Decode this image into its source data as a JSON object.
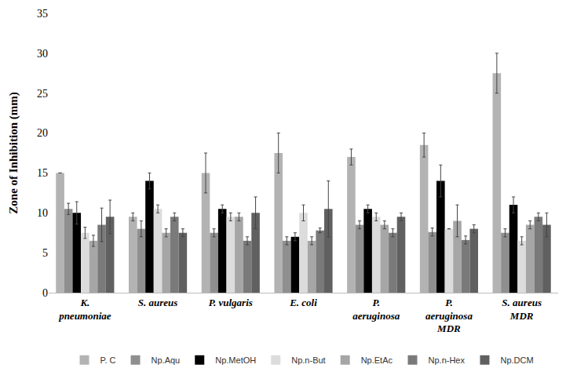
{
  "chart_data": {
    "type": "bar",
    "y_label": "Zone of Inhibition (mm)",
    "categories": [
      "K. pneumoniae",
      "S. aureus",
      "P. vulgaris",
      "E. coli",
      "P. aeruginosa",
      "P. aeruginosa MDR",
      "S. aureus MDR"
    ],
    "series": [
      {
        "name": "P. C",
        "color": "#b3b3b3",
        "values": [
          15,
          9.5,
          15,
          17.5,
          17,
          18.5,
          27.5
        ],
        "error": [
          0,
          0.5,
          2.5,
          2.5,
          1,
          1.5,
          2.5
        ]
      },
      {
        "name": "Np.Aqu",
        "color": "#8f8f8f",
        "values": [
          10.5,
          8,
          7.5,
          6.5,
          8.5,
          7.6,
          7.5
        ],
        "error": [
          0.7,
          1,
          0.5,
          0.5,
          0.5,
          0.5,
          0.5
        ]
      },
      {
        "name": "Np.MetOH",
        "color": "#000000",
        "values": [
          10,
          14,
          10.5,
          7,
          10.5,
          14,
          11
        ],
        "error": [
          1.4,
          1,
          0.5,
          0.5,
          0.5,
          2,
          1
        ]
      },
      {
        "name": "Np.n-But",
        "color": "#dcdcdc",
        "values": [
          7.5,
          10.5,
          9.5,
          10,
          9.5,
          8,
          6.5
        ],
        "error": [
          0.7,
          0.5,
          0.5,
          1,
          0.5,
          0,
          0.5
        ]
      },
      {
        "name": "Np.EtAc",
        "color": "#a6a6a6",
        "values": [
          6.5,
          7.5,
          9.5,
          6.5,
          8.5,
          9,
          8.5
        ],
        "error": [
          0.7,
          0.5,
          0.5,
          0.5,
          0.5,
          2,
          0.5
        ]
      },
      {
        "name": "Np.n-Hex",
        "color": "#7a7a7a",
        "values": [
          8.5,
          9.5,
          6.5,
          7.8,
          7.5,
          6.6,
          9.5
        ],
        "error": [
          2.1,
          0.5,
          0.5,
          0.3,
          0.5,
          0.5,
          0.5
        ]
      },
      {
        "name": "Np.DCM",
        "color": "#606060",
        "values": [
          9.5,
          7.5,
          10,
          10.5,
          9.5,
          8,
          8.5
        ],
        "error": [
          2.1,
          0.5,
          2,
          3.5,
          0.5,
          0.5,
          1.5
        ]
      }
    ],
    "ylim": [
      0,
      35
    ],
    "yticks": [
      0,
      5,
      10,
      15,
      20,
      25,
      30,
      35
    ],
    "grid": false,
    "legend": "bottom"
  }
}
